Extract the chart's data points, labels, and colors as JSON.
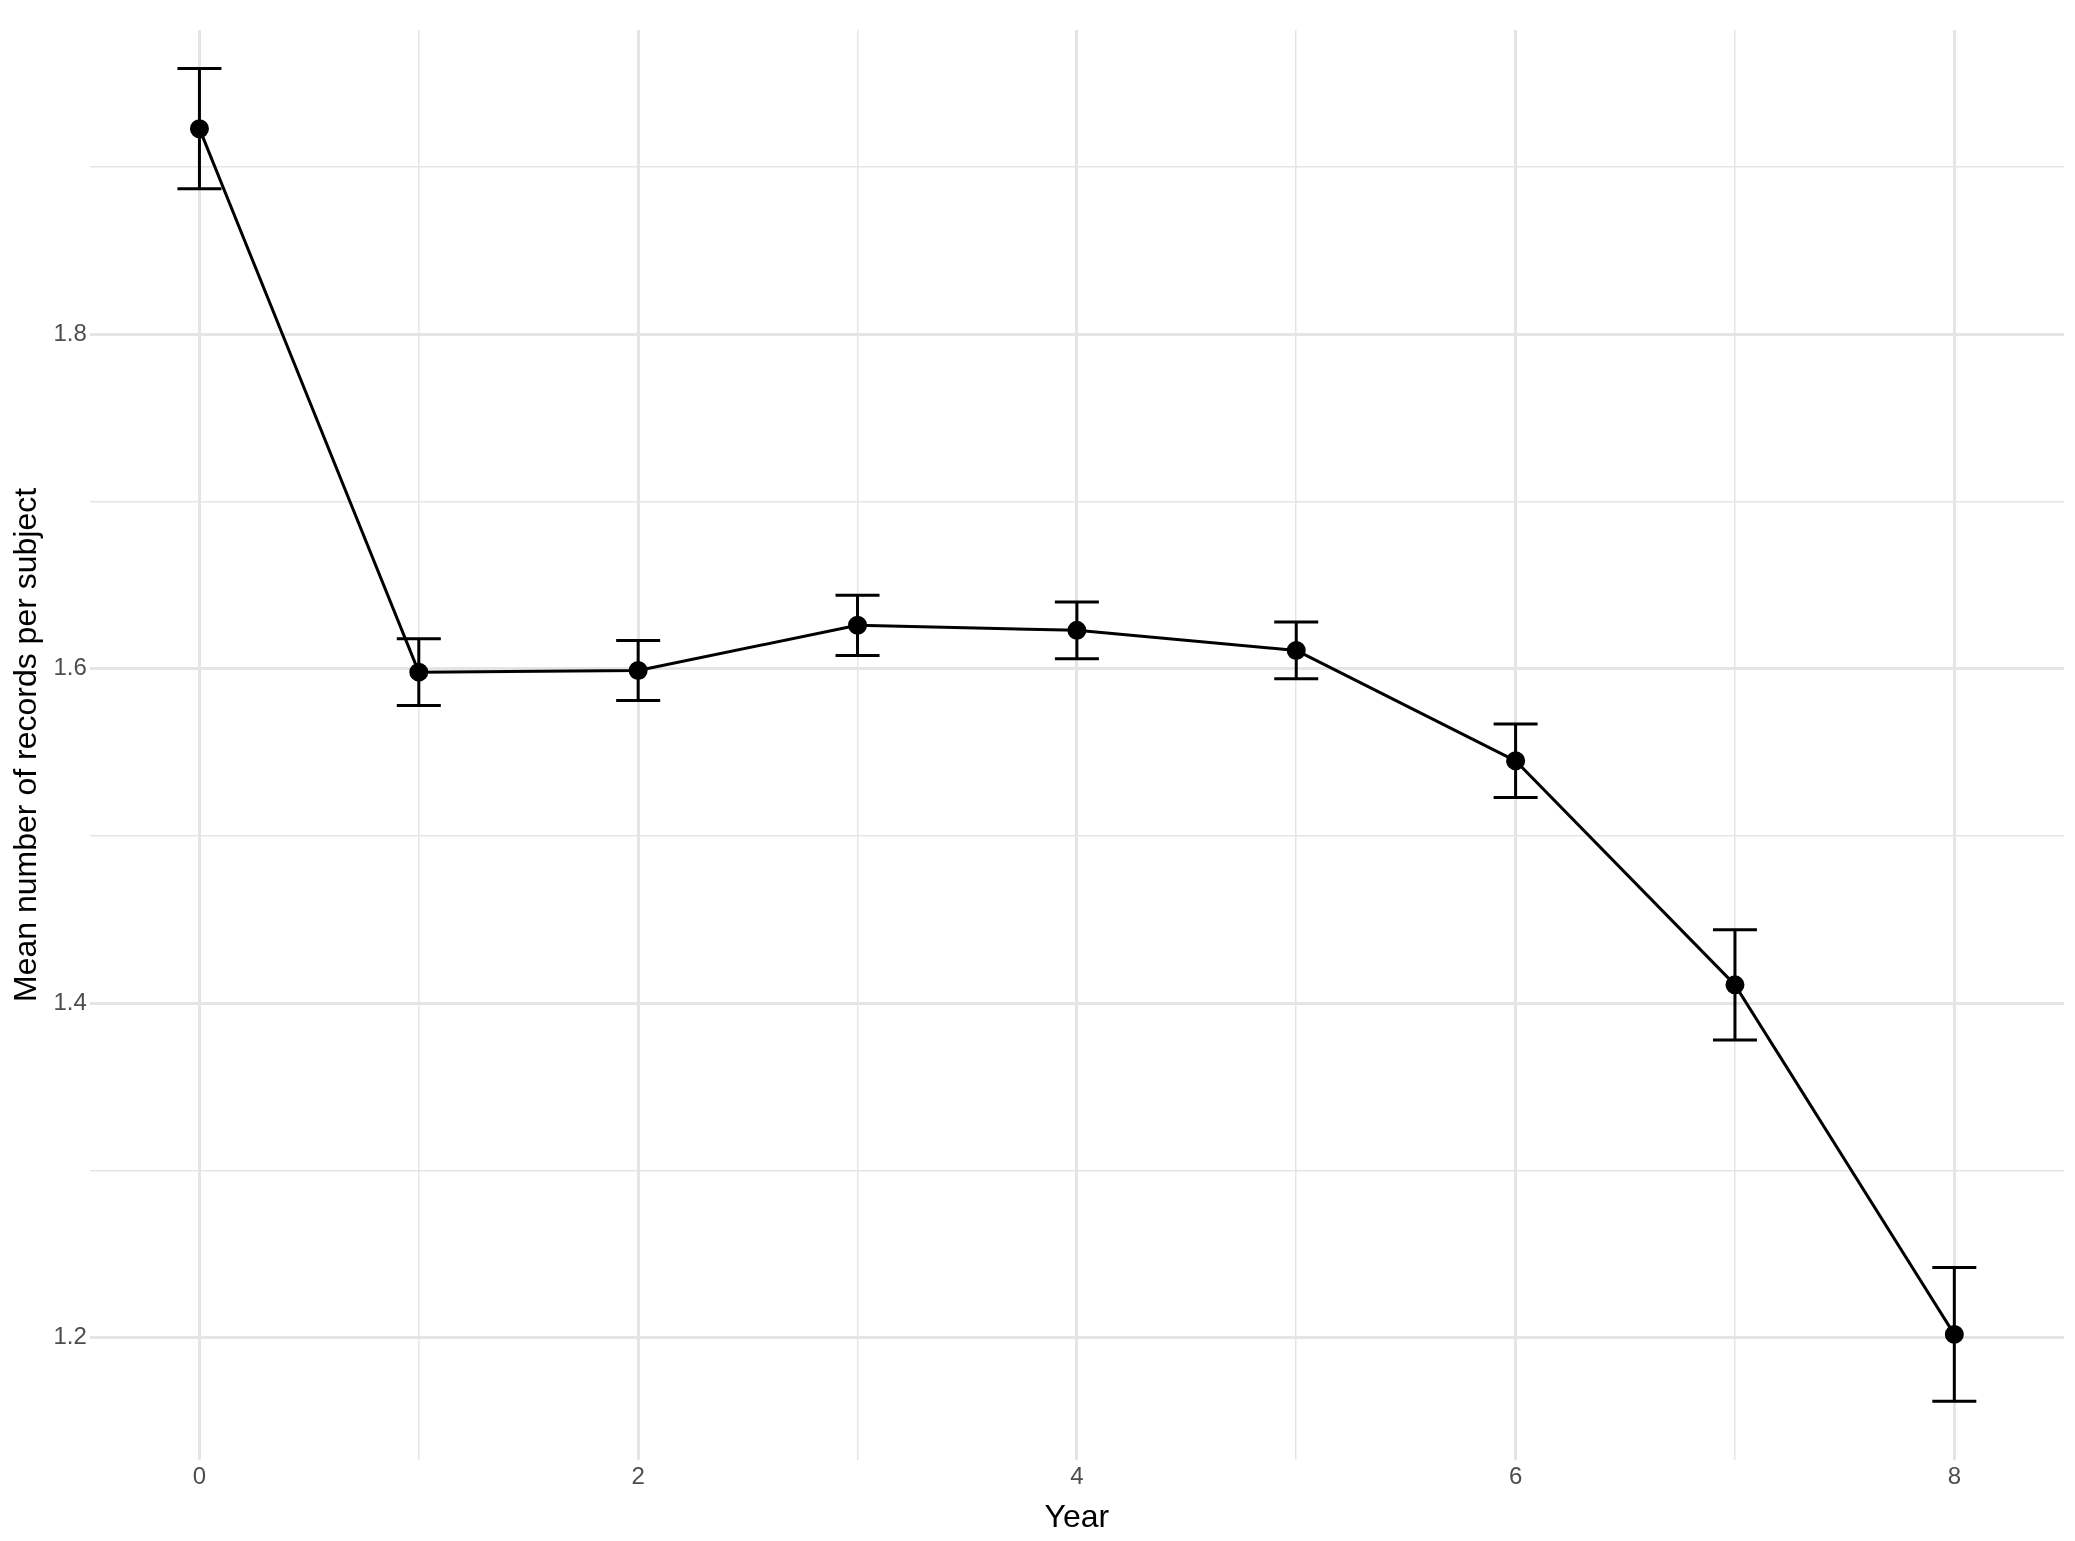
{
  "chart_data": {
    "type": "line",
    "xlabel": "Year",
    "ylabel": "Mean number of records per subject",
    "x": [
      0,
      1,
      2,
      3,
      4,
      5,
      6,
      7,
      8
    ],
    "color": "#000000",
    "values": [
      1.923,
      1.598,
      1.599,
      1.626,
      1.623,
      1.611,
      1.545,
      1.411,
      1.202
    ],
    "errors": [
      0.036,
      0.02,
      0.018,
      0.018,
      0.017,
      0.017,
      0.022,
      0.033,
      0.04
    ],
    "xlim": [
      -0.5,
      8.5
    ],
    "xticks": [
      0,
      {
        "value": 1,
        "label": null
      },
      2,
      {
        "value": 3,
        "label": null
      },
      4,
      {
        "value": 5,
        "label": null
      },
      6,
      {
        "value": 7,
        "label": null
      },
      8
    ],
    "ylim": [
      1.127,
      1.982
    ],
    "yticks": [
      1.2,
      {
        "value": 1.3,
        "label": null
      },
      1.4,
      {
        "value": 1.5,
        "label": null
      },
      1.6,
      {
        "value": 1.7,
        "label": null
      },
      1.8,
      {
        "value": 1.9,
        "label": null
      }
    ],
    "grid": true,
    "legend": false,
    "marker": "circle",
    "line_style": "solid"
  }
}
